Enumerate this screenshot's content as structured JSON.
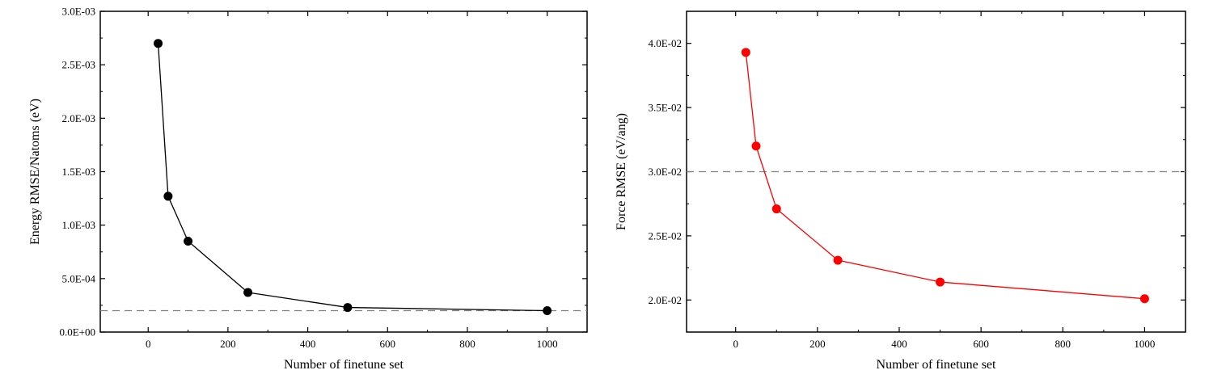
{
  "chart_data": [
    {
      "type": "line",
      "title": "",
      "xlabel": "Number of finetune set",
      "ylabel": "Energy RMSE/Natoms (eV)",
      "xlim": [
        -120,
        1100
      ],
      "ylim": [
        0,
        0.003
      ],
      "x_ticks": [
        0,
        200,
        400,
        600,
        800,
        1000
      ],
      "x_tick_labels": [
        "0",
        "200",
        "400",
        "600",
        "800",
        "1000"
      ],
      "y_ticks": [
        0,
        0.0005,
        0.001,
        0.0015,
        0.002,
        0.0025,
        0.003
      ],
      "y_tick_labels": [
        "0.0E+00",
        "5.0E-04",
        "1.0E-03",
        "1.5E-03",
        "2.0E-03",
        "2.5E-03",
        "3.0E-03"
      ],
      "grid": false,
      "series": [
        {
          "x": [
            25,
            50,
            100,
            250,
            500,
            1000
          ],
          "values": [
            0.0027,
            0.00127,
            0.00085,
            0.00037,
            0.00023,
            0.0002
          ],
          "color": "#000000"
        }
      ],
      "reference_line": {
        "y": 0.0002,
        "style": "dashed",
        "color": "#808080"
      }
    },
    {
      "type": "line",
      "title": "",
      "xlabel": "Number of finetune set",
      "ylabel": "Force RMSE (eV/ang)",
      "xlim": [
        -120,
        1100
      ],
      "ylim": [
        0.0175,
        0.0425
      ],
      "x_ticks": [
        0,
        200,
        400,
        600,
        800,
        1000
      ],
      "x_tick_labels": [
        "0",
        "200",
        "400",
        "600",
        "800",
        "1000"
      ],
      "y_ticks": [
        0.02,
        0.025,
        0.03,
        0.035,
        0.04
      ],
      "y_tick_labels": [
        "2.0E-02",
        "2.5E-02",
        "3.0E-02",
        "3.5E-02",
        "4.0E-02"
      ],
      "grid": false,
      "series": [
        {
          "x": [
            25,
            50,
            100,
            250,
            500,
            1000
          ],
          "values": [
            0.0393,
            0.032,
            0.0271,
            0.0231,
            0.0214,
            0.0201
          ],
          "color": "#ff0000"
        }
      ],
      "reference_line": {
        "y": 0.03,
        "style": "dashed",
        "color": "#808080"
      }
    }
  ]
}
